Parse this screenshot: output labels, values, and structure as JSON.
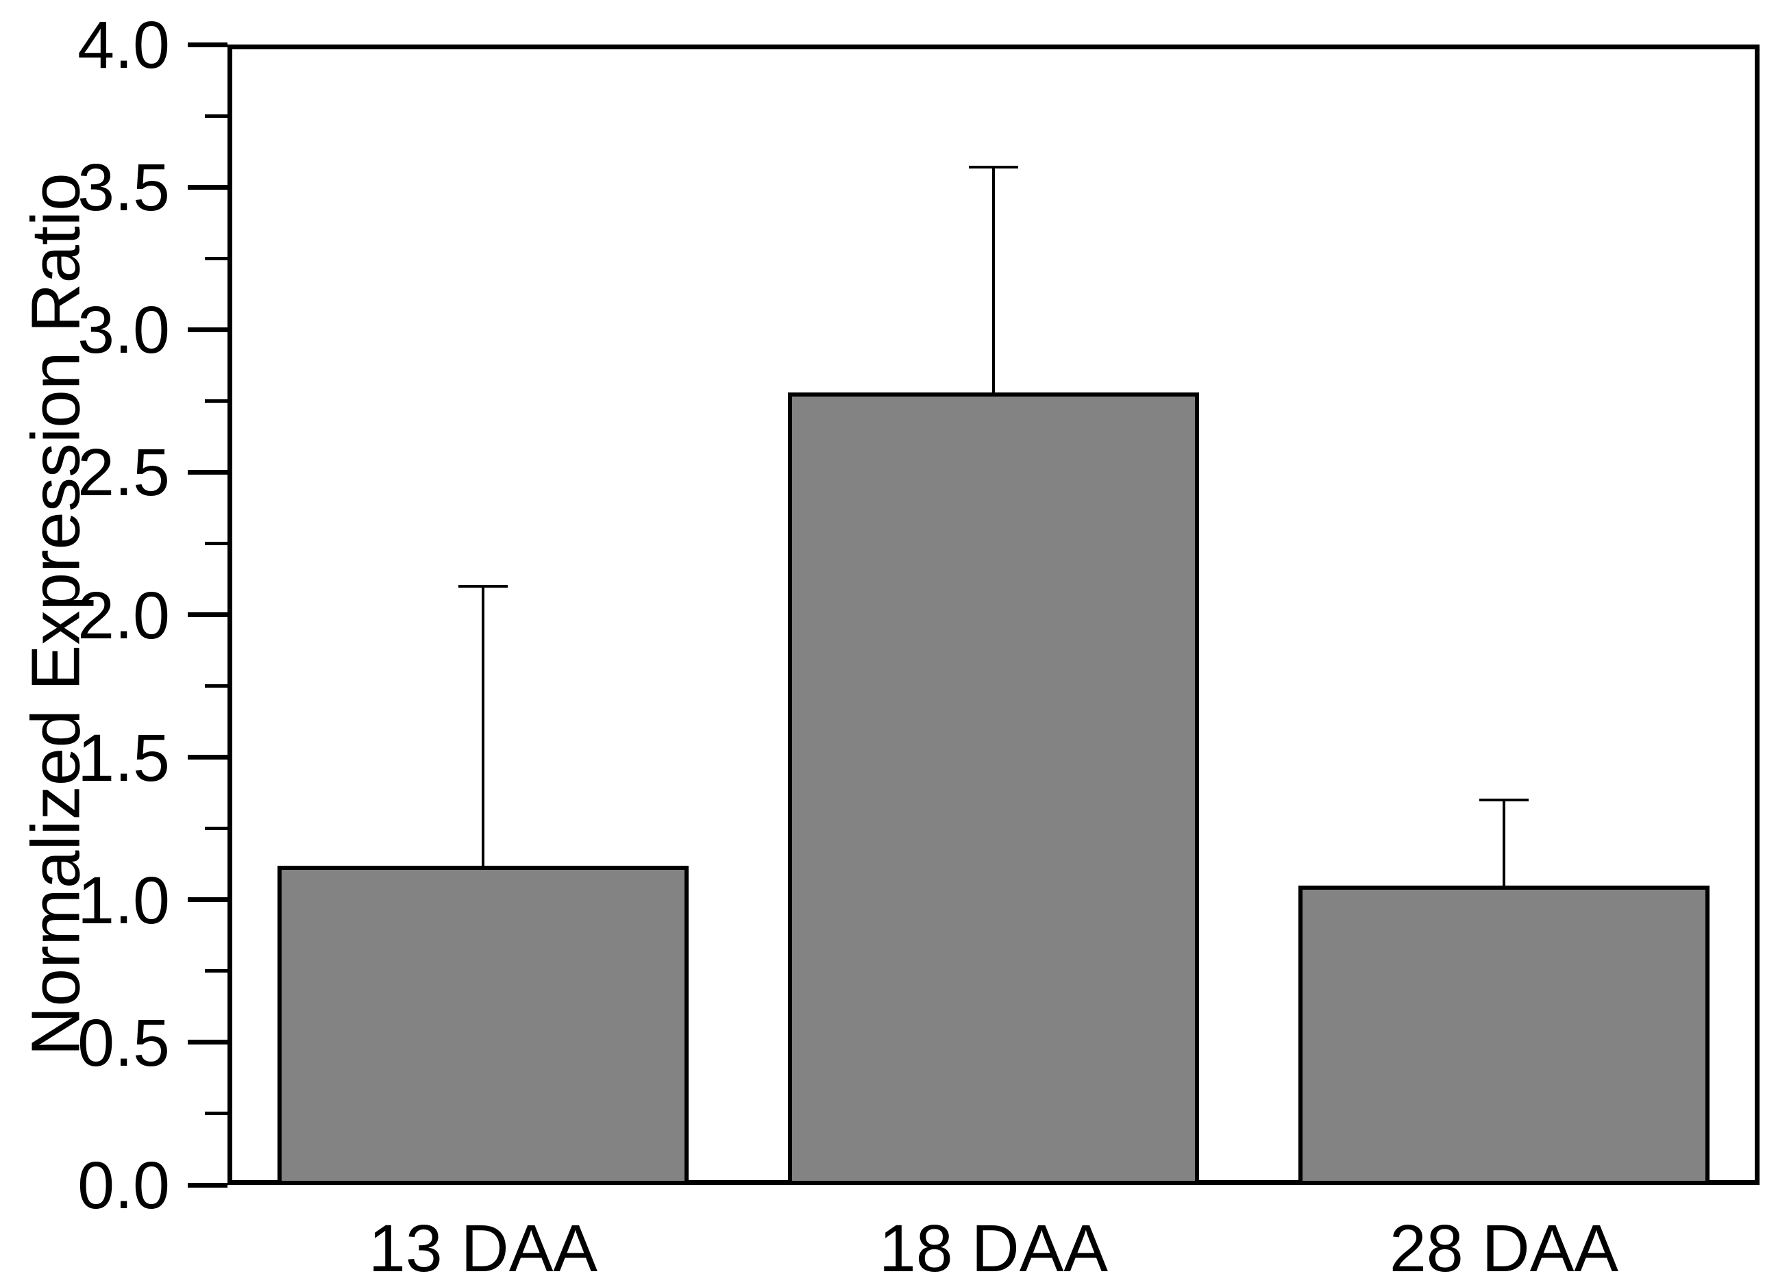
{
  "figure": {
    "background": "#ffffff",
    "text_color": "#000000"
  },
  "chart_data": {
    "type": "bar",
    "title": "",
    "xlabel": "",
    "ylabel": "Normalized Expression Ratio",
    "categories": [
      "13 DAA",
      "18 DAA",
      "28 DAA"
    ],
    "values": [
      1.12,
      2.78,
      1.05
    ],
    "error_plus": [
      0.98,
      0.79,
      0.3
    ],
    "error_tops": [
      2.1,
      3.57,
      1.35
    ],
    "ylim": [
      0.0,
      4.0
    ],
    "ytick_step": 0.5,
    "ytick_minor_step": 0.25,
    "ytick_labels": [
      "0.0",
      "0.5",
      "1.0",
      "1.5",
      "2.0",
      "2.5",
      "3.0",
      "3.5",
      "4.0"
    ],
    "grid": false,
    "legend": "none",
    "error_bar_style": "upper-only",
    "bar_color": "#838383",
    "bar_edge_color": "#000000",
    "axis_color": "#000000",
    "frame": "full-box"
  }
}
